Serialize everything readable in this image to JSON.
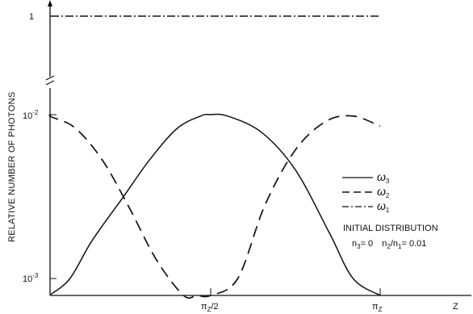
{
  "chart_data": {
    "type": "line",
    "title": "",
    "ylabel": "RELATIVE NUMBER OF PHOTONS",
    "xlabel": "Z",
    "y_scale": "log (with axis break)",
    "y_ticks": [
      {
        "label": "10",
        "sup": "-3",
        "value": 0.001
      },
      {
        "label": "10",
        "sup": "-2",
        "value": 0.01
      },
      {
        "label": "1",
        "sup": "",
        "value": 1
      }
    ],
    "x_ticks": [
      {
        "label": "π",
        "sub": "Z",
        "suffix": "/2",
        "value": 0.5
      },
      {
        "label": "π",
        "sub": "Z",
        "suffix": "",
        "value": 1.0
      }
    ],
    "grid": false,
    "legend_position": "right-middle",
    "series": [
      {
        "name": "ω3",
        "style": "solid",
        "points": [
          [
            0.0,
            0.0008
          ],
          [
            0.085,
            0.001
          ],
          [
            0.15,
            0.0017
          ],
          [
            0.24,
            0.0031
          ],
          [
            0.32,
            0.0053
          ],
          [
            0.4,
            0.0082
          ],
          [
            0.47,
            0.0098
          ],
          [
            0.5,
            0.01
          ],
          [
            0.55,
            0.0098
          ],
          [
            0.65,
            0.0078
          ],
          [
            0.75,
            0.0046
          ],
          [
            0.85,
            0.0019
          ],
          [
            0.92,
            0.001
          ],
          [
            1.0,
            0.0006
          ]
        ]
      },
      {
        "name": "ω2",
        "style": "dashed",
        "points": [
          [
            0.0,
            0.01
          ],
          [
            0.03,
            0.0097
          ],
          [
            0.1,
            0.0083
          ],
          [
            0.18,
            0.0053
          ],
          [
            0.26,
            0.0027
          ],
          [
            0.34,
            0.0013
          ],
          [
            0.42,
            0.0006
          ],
          [
            0.46,
            0.0005
          ],
          [
            0.5,
            0.0005
          ],
          [
            0.58,
            0.001
          ],
          [
            0.66,
            0.0028
          ],
          [
            0.75,
            0.0061
          ],
          [
            0.84,
            0.0091
          ],
          [
            0.92,
            0.0098
          ],
          [
            1.0,
            0.0085
          ]
        ]
      },
      {
        "name": "ω1",
        "style": "dash-dot",
        "points": [
          [
            0.0,
            1.0
          ],
          [
            1.0,
            1.0
          ]
        ]
      }
    ],
    "annotations": {
      "initial_distribution_title": "INITIAL DISTRIBUTION",
      "n3_eq": "n",
      "n3_sub": "3",
      "n3_val": "= 0",
      "ratio_n2": "n",
      "ratio_n2_sub": "2",
      "ratio_sep": "/n",
      "ratio_n1_sub": "1",
      "ratio_val": "= 0.01"
    },
    "legend": {
      "omega_char": "ω",
      "w3_sub": "3",
      "w2_sub": "2",
      "w1_sub": "1"
    }
  }
}
